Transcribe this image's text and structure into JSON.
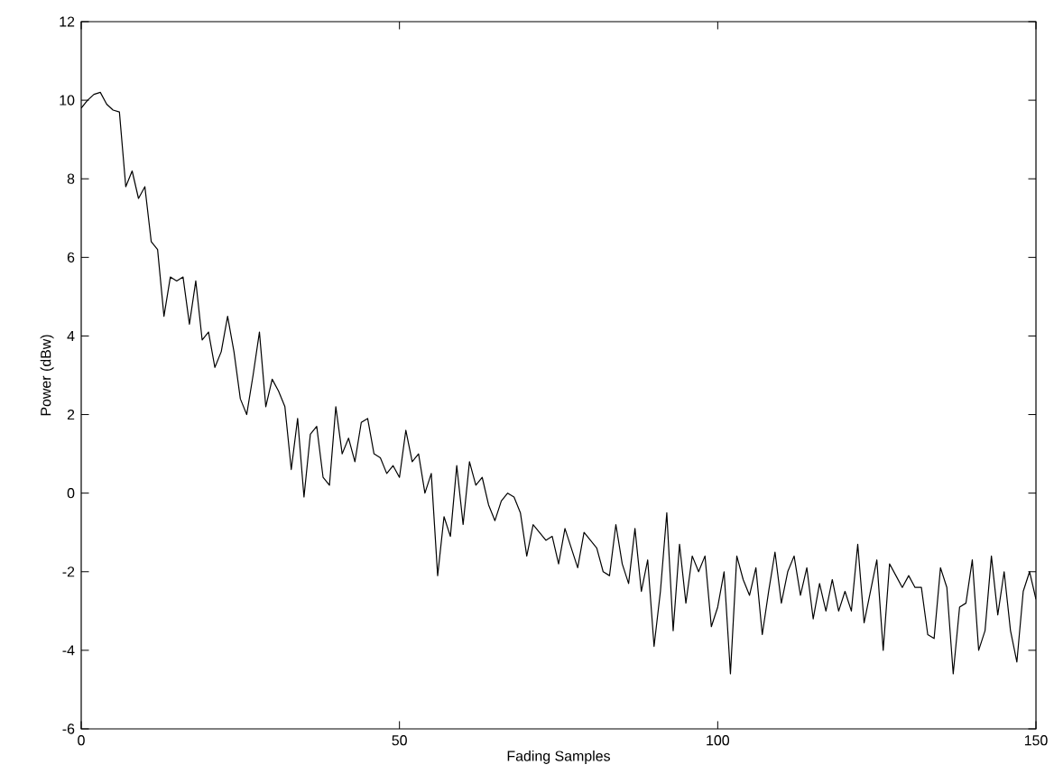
{
  "chart_data": {
    "type": "line",
    "xlabel": "Fading Samples",
    "ylabel": "Power (dBw)",
    "xlim": [
      0,
      150
    ],
    "ylim": [
      -6,
      12
    ],
    "xticks": [
      0,
      50,
      100,
      150
    ],
    "yticks": [
      -6,
      -4,
      -2,
      0,
      2,
      4,
      6,
      8,
      10,
      12
    ],
    "grid": false,
    "series": [
      {
        "color": "#000000",
        "x": [
          0,
          1,
          2,
          3,
          4,
          5,
          6,
          7,
          8,
          9,
          10,
          11,
          12,
          13,
          14,
          15,
          16,
          17,
          18,
          19,
          20,
          21,
          22,
          23,
          24,
          25,
          26,
          27,
          28,
          29,
          30,
          31,
          32,
          33,
          34,
          35,
          36,
          37,
          38,
          39,
          40,
          41,
          42,
          43,
          44,
          45,
          46,
          47,
          48,
          49,
          50,
          51,
          52,
          53,
          54,
          55,
          56,
          57,
          58,
          59,
          60,
          61,
          62,
          63,
          64,
          65,
          66,
          67,
          68,
          69,
          70,
          71,
          72,
          73,
          74,
          75,
          76,
          77,
          78,
          79,
          80,
          81,
          82,
          83,
          84,
          85,
          86,
          87,
          88,
          89,
          90,
          91,
          92,
          93,
          94,
          95,
          96,
          97,
          98,
          99,
          100,
          101,
          102,
          103,
          104,
          105,
          106,
          107,
          108,
          109,
          110,
          111,
          112,
          113,
          114,
          115,
          116,
          117,
          118,
          119,
          120,
          121,
          122,
          123,
          124,
          125,
          126,
          127,
          128,
          129,
          130,
          131,
          132,
          133,
          134,
          135,
          136,
          137,
          138,
          139,
          140,
          141,
          142,
          143,
          144,
          145,
          146,
          147,
          148,
          149,
          150
        ],
        "values": [
          9.8,
          10.0,
          10.15,
          10.2,
          9.9,
          9.75,
          9.7,
          7.8,
          8.2,
          7.5,
          7.8,
          6.4,
          6.2,
          4.5,
          5.5,
          5.4,
          5.5,
          4.3,
          5.4,
          3.9,
          4.1,
          3.2,
          3.6,
          4.5,
          3.6,
          2.4,
          2.0,
          3.0,
          4.1,
          2.2,
          2.9,
          2.6,
          2.2,
          0.6,
          1.9,
          -0.1,
          1.5,
          1.7,
          0.4,
          0.2,
          2.2,
          1.0,
          1.4,
          0.8,
          1.8,
          1.9,
          1.0,
          0.9,
          0.5,
          0.7,
          0.4,
          1.6,
          0.8,
          1.0,
          0.0,
          0.5,
          -2.1,
          -0.6,
          -1.1,
          0.7,
          -0.8,
          0.8,
          0.2,
          0.4,
          -0.3,
          -0.7,
          -0.2,
          0.0,
          -0.1,
          -0.5,
          -1.6,
          -0.8,
          -1.0,
          -1.2,
          -1.1,
          -1.8,
          -0.9,
          -1.4,
          -1.9,
          -1.0,
          -1.2,
          -1.4,
          -2.0,
          -2.1,
          -0.8,
          -1.8,
          -2.3,
          -0.9,
          -2.5,
          -1.7,
          -3.9,
          -2.5,
          -0.5,
          -3.5,
          -1.3,
          -2.8,
          -1.6,
          -2.0,
          -1.6,
          -3.4,
          -2.9,
          -2.0,
          -4.6,
          -1.6,
          -2.2,
          -2.6,
          -1.9,
          -3.6,
          -2.5,
          -1.5,
          -2.8,
          -2.0,
          -1.6,
          -2.6,
          -1.9,
          -3.2,
          -2.3,
          -3.0,
          -2.2,
          -3.0,
          -2.5,
          -3.0,
          -1.3,
          -3.3,
          -2.5,
          -1.7,
          -4.0,
          -1.8,
          -2.1,
          -2.4,
          -2.1,
          -2.4,
          -2.4,
          -3.6,
          -3.7,
          -1.9,
          -2.4,
          -4.6,
          -2.9,
          -2.8,
          -1.7,
          -4.0,
          -3.5,
          -1.6,
          -3.1,
          -2.0,
          -3.5,
          -4.3,
          -2.5,
          -2.0,
          -2.7
        ]
      }
    ]
  }
}
